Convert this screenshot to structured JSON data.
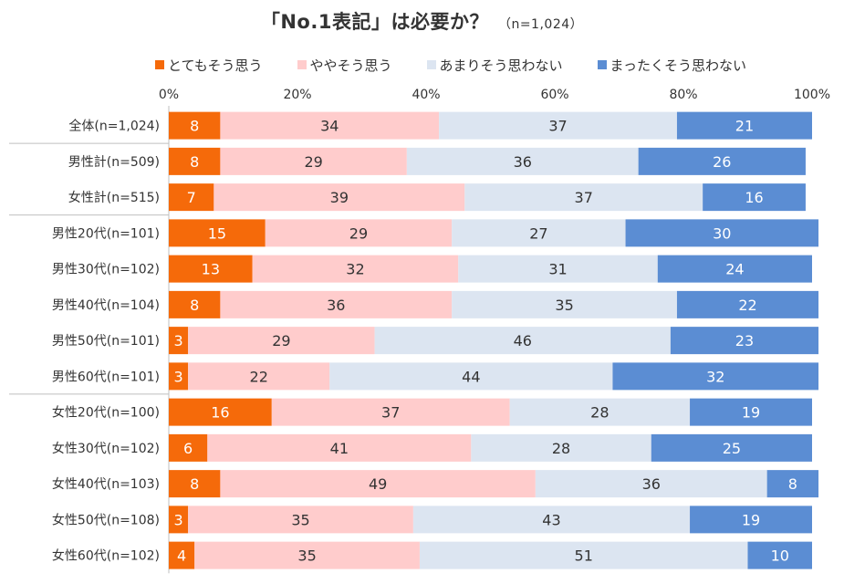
{
  "title": "「No.1表記」は必要か？",
  "subtitle": "（n=1,024）",
  "chart_data": {
    "type": "bar",
    "orientation": "horizontal",
    "stacked": true,
    "percent": true,
    "title": "「No.1表記」は必要か？",
    "subtitle": "（n=1,024）",
    "xlim": [
      0,
      100
    ],
    "x_ticks": [
      "0%",
      "20%",
      "40%",
      "60%",
      "80%",
      "100%"
    ],
    "legend_position": "top",
    "categories": [
      "全体(n=1,024)",
      "男性計(n=509)",
      "女性計(n=515)",
      "男性20代(n=101)",
      "男性30代(n=102)",
      "男性40代(n=104)",
      "男性50代(n=101)",
      "男性60代(n=101)",
      "女性20代(n=100)",
      "女性30代(n=102)",
      "女性40代(n=103)",
      "女性50代(n=108)",
      "女性60代(n=102)"
    ],
    "series": [
      {
        "name": "とてもそう思う",
        "color": "#F56A0A",
        "label_color": "#FFFFFF",
        "values": [
          8,
          8,
          7,
          15,
          13,
          8,
          3,
          3,
          16,
          6,
          8,
          3,
          4
        ]
      },
      {
        "name": "ややそう思う",
        "color": "#FFCCCC",
        "label_color": "#333333",
        "values": [
          34,
          29,
          39,
          29,
          32,
          36,
          29,
          22,
          37,
          41,
          49,
          35,
          35
        ]
      },
      {
        "name": "あまりそう思わない",
        "color": "#DCE5F1",
        "label_color": "#333333",
        "values": [
          37,
          36,
          37,
          27,
          31,
          35,
          46,
          44,
          28,
          28,
          36,
          43,
          51
        ]
      },
      {
        "name": "まったくそう思わない",
        "color": "#5B8DD3",
        "label_color": "#FFFFFF",
        "values": [
          21,
          26,
          16,
          30,
          24,
          22,
          23,
          32,
          19,
          25,
          8,
          19,
          10
        ]
      }
    ]
  }
}
